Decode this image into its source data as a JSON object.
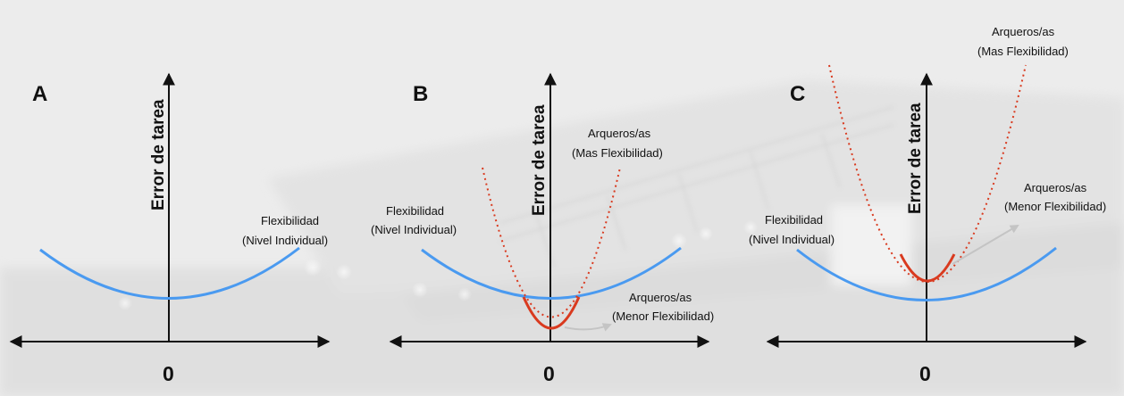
{
  "colors": {
    "individual_curve": "#4a9af0",
    "archer_curve": "#d93a1f",
    "axis": "#111111",
    "gray_arrow": "#c4c4c4",
    "background": "#e9e9e9"
  },
  "axis_title": "Error de tarea",
  "zero_label": "0",
  "panels": [
    {
      "letter": "A",
      "individual_label": [
        "Flexibilidad",
        "(Nivel Individual)"
      ]
    },
    {
      "letter": "B",
      "individual_label": [
        "Flexibilidad",
        "(Nivel Individual)"
      ],
      "more_flex_label": [
        "Arqueros/as",
        "(Mas Flexibilidad)"
      ],
      "less_flex_label": [
        "Arqueros/as",
        "(Menor Flexibilidad)"
      ]
    },
    {
      "letter": "C",
      "individual_label": [
        "Flexibilidad",
        "(Nivel Individual)"
      ],
      "more_flex_label": [
        "Arqueros/as",
        "(Mas Flexibilidad)"
      ],
      "less_flex_label": [
        "Arqueros/as",
        "(Menor Flexibilidad)"
      ]
    }
  ]
}
